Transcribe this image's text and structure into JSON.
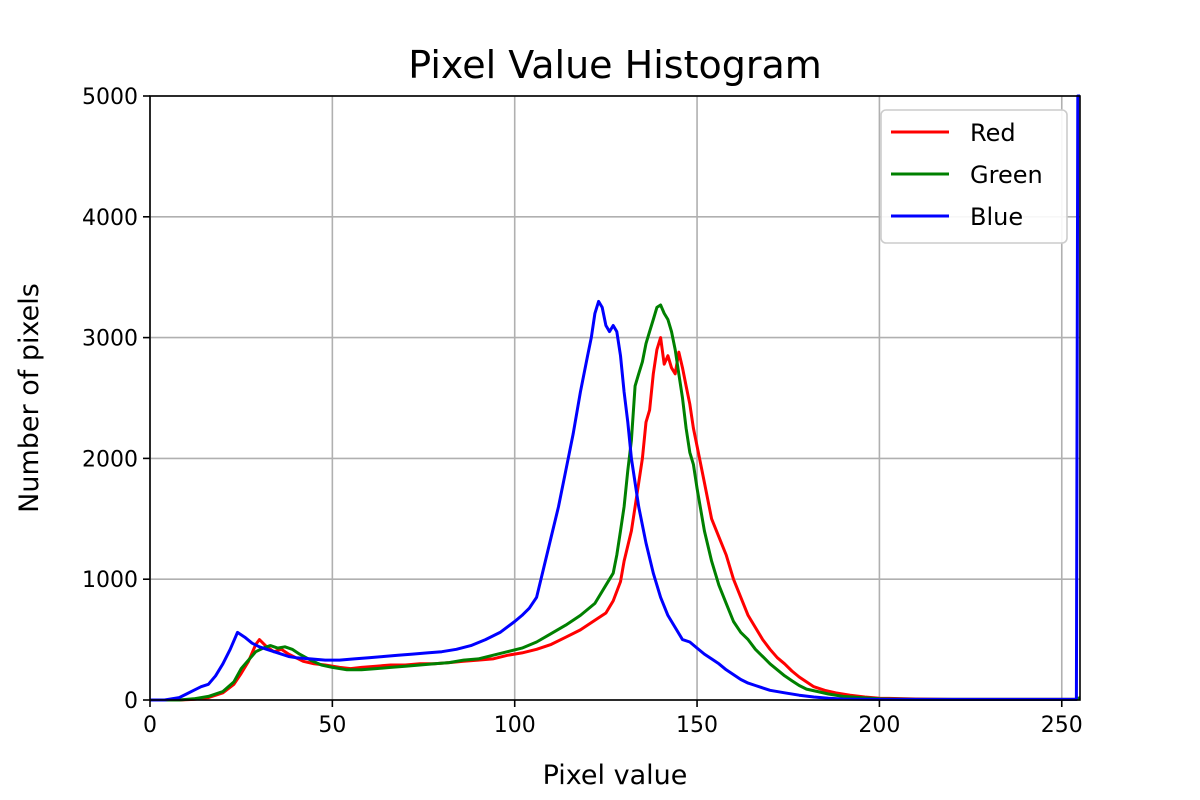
{
  "chart_data": {
    "type": "line",
    "title": "Pixel Value Histogram",
    "xlabel": "Pixel value",
    "ylabel": "Number of pixels",
    "xlim": [
      0,
      255
    ],
    "ylim": [
      0,
      5000
    ],
    "xticks": [
      0,
      50,
      100,
      150,
      200,
      250
    ],
    "yticks": [
      0,
      1000,
      2000,
      3000,
      4000,
      5000
    ],
    "grid": true,
    "legend_position": "top-right",
    "series": [
      {
        "name": "Red",
        "color": "#ff0000",
        "points": [
          [
            0,
            0
          ],
          [
            8,
            0
          ],
          [
            12,
            5
          ],
          [
            16,
            20
          ],
          [
            20,
            60
          ],
          [
            23,
            130
          ],
          [
            25,
            220
          ],
          [
            27,
            320
          ],
          [
            29,
            460
          ],
          [
            30,
            500
          ],
          [
            32,
            440
          ],
          [
            34,
            400
          ],
          [
            36,
            420
          ],
          [
            38,
            380
          ],
          [
            40,
            350
          ],
          [
            42,
            320
          ],
          [
            45,
            300
          ],
          [
            48,
            290
          ],
          [
            52,
            270
          ],
          [
            55,
            260
          ],
          [
            58,
            270
          ],
          [
            62,
            280
          ],
          [
            66,
            290
          ],
          [
            70,
            290
          ],
          [
            74,
            300
          ],
          [
            78,
            300
          ],
          [
            82,
            310
          ],
          [
            86,
            320
          ],
          [
            90,
            330
          ],
          [
            94,
            340
          ],
          [
            98,
            370
          ],
          [
            102,
            390
          ],
          [
            106,
            420
          ],
          [
            110,
            460
          ],
          [
            114,
            520
          ],
          [
            118,
            580
          ],
          [
            122,
            660
          ],
          [
            125,
            720
          ],
          [
            127,
            820
          ],
          [
            129,
            980
          ],
          [
            130,
            1150
          ],
          [
            132,
            1400
          ],
          [
            133,
            1600
          ],
          [
            135,
            2000
          ],
          [
            136,
            2300
          ],
          [
            137,
            2400
          ],
          [
            138,
            2700
          ],
          [
            139,
            2900
          ],
          [
            140,
            3000
          ],
          [
            141,
            2780
          ],
          [
            142,
            2850
          ],
          [
            143,
            2750
          ],
          [
            144,
            2700
          ],
          [
            145,
            2880
          ],
          [
            146,
            2750
          ],
          [
            147,
            2600
          ],
          [
            148,
            2450
          ],
          [
            149,
            2250
          ],
          [
            150,
            2100
          ],
          [
            152,
            1800
          ],
          [
            154,
            1500
          ],
          [
            156,
            1350
          ],
          [
            158,
            1200
          ],
          [
            160,
            1000
          ],
          [
            162,
            850
          ],
          [
            164,
            700
          ],
          [
            166,
            600
          ],
          [
            168,
            500
          ],
          [
            170,
            420
          ],
          [
            172,
            350
          ],
          [
            174,
            300
          ],
          [
            176,
            240
          ],
          [
            178,
            190
          ],
          [
            180,
            150
          ],
          [
            182,
            110
          ],
          [
            185,
            80
          ],
          [
            188,
            60
          ],
          [
            192,
            40
          ],
          [
            196,
            25
          ],
          [
            200,
            15
          ],
          [
            210,
            8
          ],
          [
            220,
            5
          ],
          [
            254,
            5
          ],
          [
            255,
            20
          ]
        ]
      },
      {
        "name": "Green",
        "color": "#008000",
        "points": [
          [
            0,
            0
          ],
          [
            8,
            0
          ],
          [
            12,
            10
          ],
          [
            16,
            30
          ],
          [
            20,
            70
          ],
          [
            23,
            150
          ],
          [
            25,
            260
          ],
          [
            27,
            330
          ],
          [
            29,
            400
          ],
          [
            31,
            430
          ],
          [
            33,
            450
          ],
          [
            35,
            430
          ],
          [
            37,
            440
          ],
          [
            39,
            420
          ],
          [
            41,
            380
          ],
          [
            44,
            330
          ],
          [
            47,
            290
          ],
          [
            50,
            270
          ],
          [
            54,
            250
          ],
          [
            58,
            250
          ],
          [
            62,
            260
          ],
          [
            66,
            270
          ],
          [
            70,
            280
          ],
          [
            74,
            290
          ],
          [
            78,
            300
          ],
          [
            82,
            310
          ],
          [
            86,
            330
          ],
          [
            90,
            340
          ],
          [
            94,
            370
          ],
          [
            98,
            400
          ],
          [
            102,
            430
          ],
          [
            106,
            480
          ],
          [
            110,
            550
          ],
          [
            114,
            620
          ],
          [
            118,
            700
          ],
          [
            122,
            800
          ],
          [
            125,
            950
          ],
          [
            127,
            1050
          ],
          [
            128,
            1200
          ],
          [
            129,
            1400
          ],
          [
            130,
            1600
          ],
          [
            131,
            1900
          ],
          [
            132,
            2150
          ],
          [
            133,
            2600
          ],
          [
            134,
            2700
          ],
          [
            135,
            2800
          ],
          [
            136,
            2950
          ],
          [
            137,
            3050
          ],
          [
            138,
            3150
          ],
          [
            139,
            3250
          ],
          [
            140,
            3270
          ],
          [
            141,
            3200
          ],
          [
            142,
            3150
          ],
          [
            143,
            3050
          ],
          [
            144,
            2900
          ],
          [
            145,
            2700
          ],
          [
            146,
            2500
          ],
          [
            147,
            2250
          ],
          [
            148,
            2050
          ],
          [
            149,
            1950
          ],
          [
            150,
            1750
          ],
          [
            152,
            1400
          ],
          [
            154,
            1150
          ],
          [
            156,
            950
          ],
          [
            158,
            800
          ],
          [
            160,
            650
          ],
          [
            162,
            560
          ],
          [
            164,
            500
          ],
          [
            166,
            420
          ],
          [
            168,
            360
          ],
          [
            170,
            300
          ],
          [
            172,
            250
          ],
          [
            174,
            200
          ],
          [
            176,
            160
          ],
          [
            178,
            120
          ],
          [
            180,
            90
          ],
          [
            183,
            70
          ],
          [
            186,
            50
          ],
          [
            190,
            30
          ],
          [
            195,
            20
          ],
          [
            200,
            10
          ],
          [
            210,
            5
          ],
          [
            254,
            5
          ],
          [
            255,
            20
          ]
        ]
      },
      {
        "name": "Blue",
        "color": "#0000ff",
        "points": [
          [
            0,
            0
          ],
          [
            4,
            0
          ],
          [
            8,
            20
          ],
          [
            10,
            50
          ],
          [
            12,
            80
          ],
          [
            14,
            110
          ],
          [
            16,
            130
          ],
          [
            18,
            200
          ],
          [
            20,
            300
          ],
          [
            22,
            420
          ],
          [
            24,
            560
          ],
          [
            26,
            520
          ],
          [
            28,
            470
          ],
          [
            30,
            440
          ],
          [
            32,
            420
          ],
          [
            34,
            400
          ],
          [
            36,
            380
          ],
          [
            38,
            360
          ],
          [
            40,
            350
          ],
          [
            44,
            340
          ],
          [
            48,
            330
          ],
          [
            52,
            330
          ],
          [
            56,
            340
          ],
          [
            60,
            350
          ],
          [
            64,
            360
          ],
          [
            68,
            370
          ],
          [
            72,
            380
          ],
          [
            76,
            390
          ],
          [
            80,
            400
          ],
          [
            84,
            420
          ],
          [
            88,
            450
          ],
          [
            92,
            500
          ],
          [
            96,
            560
          ],
          [
            100,
            650
          ],
          [
            102,
            700
          ],
          [
            104,
            760
          ],
          [
            106,
            850
          ],
          [
            108,
            1100
          ],
          [
            110,
            1350
          ],
          [
            112,
            1600
          ],
          [
            114,
            1900
          ],
          [
            116,
            2200
          ],
          [
            118,
            2550
          ],
          [
            120,
            2850
          ],
          [
            121,
            3000
          ],
          [
            122,
            3200
          ],
          [
            123,
            3300
          ],
          [
            124,
            3250
          ],
          [
            125,
            3100
          ],
          [
            126,
            3050
          ],
          [
            127,
            3100
          ],
          [
            128,
            3050
          ],
          [
            129,
            2850
          ],
          [
            130,
            2550
          ],
          [
            131,
            2300
          ],
          [
            132,
            2000
          ],
          [
            134,
            1600
          ],
          [
            136,
            1300
          ],
          [
            138,
            1050
          ],
          [
            140,
            850
          ],
          [
            142,
            700
          ],
          [
            144,
            600
          ],
          [
            146,
            500
          ],
          [
            148,
            480
          ],
          [
            150,
            430
          ],
          [
            152,
            380
          ],
          [
            154,
            340
          ],
          [
            156,
            300
          ],
          [
            158,
            250
          ],
          [
            160,
            210
          ],
          [
            162,
            170
          ],
          [
            164,
            140
          ],
          [
            166,
            120
          ],
          [
            168,
            100
          ],
          [
            170,
            80
          ],
          [
            174,
            60
          ],
          [
            178,
            40
          ],
          [
            182,
            25
          ],
          [
            186,
            15
          ],
          [
            190,
            8
          ],
          [
            200,
            5
          ],
          [
            254,
            5
          ],
          [
            254.4,
            5000
          ],
          [
            255,
            5000
          ]
        ]
      }
    ]
  }
}
